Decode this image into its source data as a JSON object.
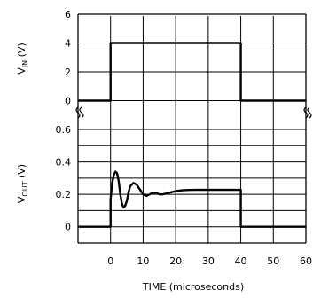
{
  "chart_data": [
    {
      "type": "line",
      "ylabel_main": "V",
      "ylabel_sub": "IN",
      "ylabel_unit": "(V)",
      "ylim": [
        -2,
        6
      ],
      "xlim": [
        -10,
        60
      ],
      "yticks": [
        {
          "value": 6,
          "label": "6"
        },
        {
          "value": 4,
          "label": "4"
        },
        {
          "value": 2,
          "label": "2"
        },
        {
          "value": 0,
          "label": "0"
        }
      ],
      "grid": true,
      "series": [
        {
          "x": [
            -10,
            0,
            0,
            40,
            40,
            60
          ],
          "y": [
            0,
            0,
            4,
            4,
            0,
            0
          ]
        }
      ]
    },
    {
      "type": "line",
      "ylabel_main": "V",
      "ylabel_sub": "OUT",
      "ylabel_unit": "(V)",
      "ylim": [
        -0.1,
        0.6
      ],
      "xlim": [
        -10,
        60
      ],
      "yticks": [
        {
          "value": 0.6,
          "label": "0.6"
        },
        {
          "value": 0.4,
          "label": "0.4"
        },
        {
          "value": 0.2,
          "label": "0.2"
        },
        {
          "value": 0,
          "label": "0"
        }
      ],
      "xticks": [
        {
          "value": 0,
          "label": "0"
        },
        {
          "value": 10,
          "label": "10"
        },
        {
          "value": 20,
          "label": "20"
        },
        {
          "value": 30,
          "label": "30"
        },
        {
          "value": 40,
          "label": "40"
        },
        {
          "value": 50,
          "label": "50"
        },
        {
          "value": 60,
          "label": "60"
        }
      ],
      "xlabel": "TIME (microseconds)",
      "grid": true,
      "series": [
        {
          "x": [
            -10,
            0,
            0,
            0.5,
            1,
            1.5,
            2,
            2.5,
            3,
            3.5,
            4,
            4.5,
            5,
            5.5,
            6,
            7,
            8,
            9,
            10,
            11,
            12,
            13,
            14,
            15,
            16,
            17,
            18,
            19,
            20,
            22,
            24,
            26,
            28,
            30,
            35,
            39.5,
            40,
            40,
            45,
            50,
            60
          ],
          "y": [
            0,
            0,
            0.17,
            0.27,
            0.32,
            0.34,
            0.33,
            0.28,
            0.2,
            0.14,
            0.12,
            0.13,
            0.16,
            0.21,
            0.25,
            0.27,
            0.26,
            0.23,
            0.2,
            0.19,
            0.2,
            0.21,
            0.21,
            0.2,
            0.2,
            0.205,
            0.21,
            0.215,
            0.22,
            0.225,
            0.227,
            0.228,
            0.228,
            0.228,
            0.228,
            0.228,
            0.228,
            0,
            0,
            0,
            0
          ]
        }
      ]
    }
  ]
}
